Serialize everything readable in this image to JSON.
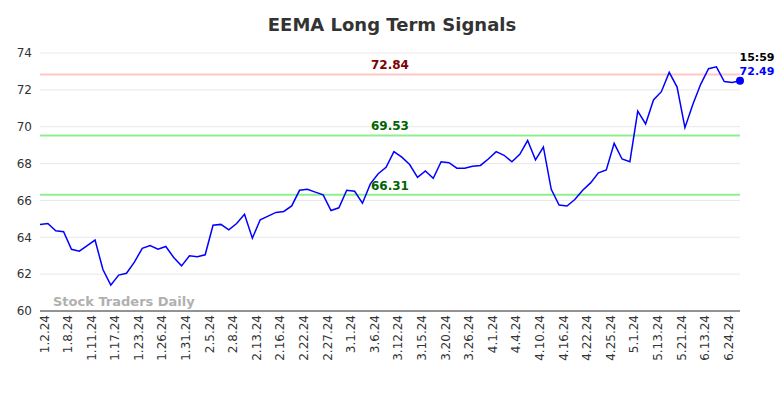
{
  "chart_data": {
    "type": "line",
    "title": "EEMA Long Term Signals",
    "watermark": "Stock Traders Daily",
    "last_point_time": "15:59",
    "categories": [
      "1.2.24",
      null,
      null,
      "1.8.24",
      null,
      null,
      "1.11.24",
      null,
      null,
      "1.17.24",
      null,
      null,
      "1.23.24",
      null,
      null,
      "1.26.24",
      null,
      null,
      "1.31.24",
      null,
      null,
      "2.5.24",
      null,
      null,
      "2.8.24",
      null,
      null,
      "2.13.24",
      null,
      null,
      "2.16.24",
      null,
      null,
      "2.22.24",
      null,
      null,
      "2.27.24",
      null,
      null,
      "3.1.24",
      null,
      null,
      "3.6.24",
      null,
      null,
      "3.12.24",
      null,
      null,
      "3.15.24",
      null,
      null,
      "3.20.24",
      null,
      null,
      "3.26.24",
      null,
      null,
      "4.1.24",
      null,
      null,
      "4.4.24",
      null,
      null,
      "4.10.24",
      null,
      null,
      "4.16.24",
      null,
      null,
      "4.22.24",
      null,
      null,
      "4.25.24",
      null,
      null,
      "5.1.24",
      null,
      null,
      "5.13.24",
      null,
      null,
      "5.21.24",
      null,
      null,
      "6.13.24",
      null,
      null,
      "6.24.24",
      null,
      null
    ],
    "values": [
      64.7,
      64.75,
      64.35,
      64.3,
      63.35,
      63.25,
      63.55,
      63.85,
      62.25,
      61.4,
      61.95,
      62.05,
      62.65,
      63.4,
      63.55,
      63.35,
      63.5,
      62.9,
      62.45,
      63.0,
      62.95,
      63.05,
      64.65,
      64.7,
      64.4,
      64.75,
      65.25,
      63.95,
      64.95,
      65.15,
      65.35,
      65.4,
      65.7,
      66.55,
      66.6,
      66.45,
      66.3,
      65.45,
      65.6,
      66.55,
      66.5,
      65.85,
      66.9,
      67.45,
      67.8,
      68.65,
      68.35,
      67.95,
      67.25,
      67.6,
      67.2,
      68.1,
      68.05,
      67.75,
      67.75,
      67.85,
      67.9,
      68.25,
      68.65,
      68.45,
      68.1,
      68.5,
      69.25,
      68.2,
      68.9,
      66.6,
      65.75,
      65.7,
      66.05,
      66.55,
      66.95,
      67.5,
      67.65,
      69.1,
      68.25,
      68.1,
      70.85,
      70.15,
      71.45,
      71.9,
      72.95,
      72.15,
      69.95,
      71.2,
      72.3,
      73.15,
      73.25,
      72.45,
      72.4,
      72.49
    ],
    "color": "#0000ff",
    "ylim": [
      60,
      74
    ],
    "yticks": [
      60,
      62,
      64,
      66,
      68,
      70,
      72,
      74
    ],
    "grid": true,
    "reference_lines": [
      {
        "value": 72.84,
        "color": "#ffc8c8",
        "label_color": "#800000"
      },
      {
        "value": 69.53,
        "color": "#90ee90",
        "label_color": "#006400"
      },
      {
        "value": 66.31,
        "color": "#90ee90",
        "label_color": "#006400"
      }
    ]
  }
}
